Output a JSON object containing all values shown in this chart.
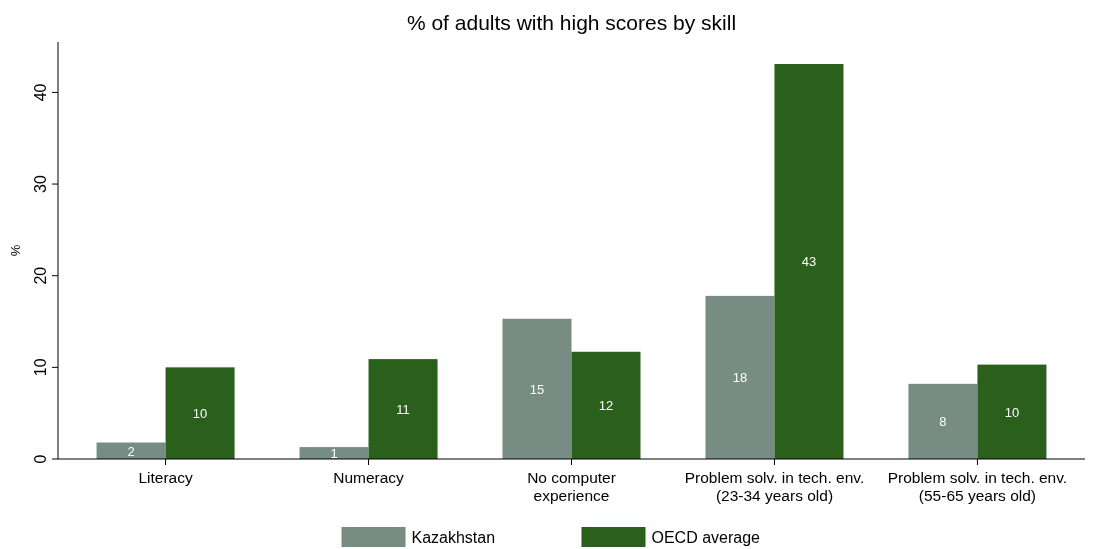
{
  "chart_data": {
    "type": "bar",
    "title": "% of adults with high scores by skill",
    "ylabel": "%",
    "categories": [
      "Literacy",
      "Numeracy",
      "No computer\nexperience",
      "Problem solv. in tech. env.\n(23-34 years old)",
      "Problem solv. in tech. env.\n(55-65 years old)"
    ],
    "series": [
      {
        "name": "Kazakhstan",
        "color": "#778d83",
        "values": [
          1.8,
          1.3,
          15.3,
          17.8,
          8.2
        ],
        "value_labels": [
          "2",
          "1",
          "15",
          "18",
          "8"
        ]
      },
      {
        "name": "OECD average",
        "color": "#2b5f1c",
        "values": [
          10.0,
          10.9,
          11.7,
          43.1,
          10.3
        ],
        "value_labels": [
          "10",
          "11",
          "12",
          "43",
          "10"
        ]
      }
    ],
    "ylim": [
      0,
      45.5
    ],
    "yticks": [
      0,
      10,
      20,
      30,
      40
    ],
    "grid": false,
    "legend": "bottom"
  }
}
